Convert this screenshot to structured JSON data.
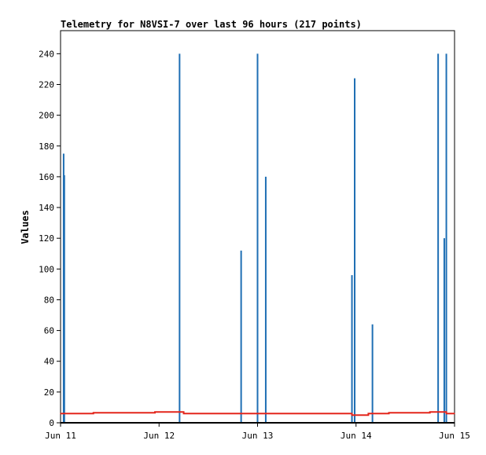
{
  "chart_data": {
    "type": "line",
    "title": "Telemetry for N8VSI-7 over last 96 hours (217 points)",
    "xlabel": "",
    "ylabel": "Values",
    "xlim": [
      "2021-06-11T00:00",
      "2021-06-15T00:00"
    ],
    "ylim": [
      0,
      255
    ],
    "grid": false,
    "x_ticks": [
      {
        "label": "Jun 11",
        "t": "2021-06-11T00:00"
      },
      {
        "label": "Jun 12",
        "t": "2021-06-12T00:00"
      },
      {
        "label": "Jun 13",
        "t": "2021-06-13T00:00"
      },
      {
        "label": "Jun 14",
        "t": "2021-06-14T00:00"
      },
      {
        "label": "Jun 15",
        "t": "2021-06-15T00:00"
      }
    ],
    "y_ticks": [
      0,
      20,
      40,
      60,
      80,
      100,
      120,
      140,
      160,
      180,
      200,
      220,
      240
    ],
    "series": [
      {
        "color": "#1f6fb4",
        "style": "spikes",
        "points": [
          {
            "t": "2021-06-11T00:45",
            "y": 175
          },
          {
            "t": "2021-06-11T00:55",
            "y": 161
          },
          {
            "t": "2021-06-12T05:00",
            "y": 240
          },
          {
            "t": "2021-06-12T20:00",
            "y": 112
          },
          {
            "t": "2021-06-13T00:00",
            "y": 240
          },
          {
            "t": "2021-06-13T02:00",
            "y": 160
          },
          {
            "t": "2021-06-13T23:00",
            "y": 96
          },
          {
            "t": "2021-06-13T23:40",
            "y": 224
          },
          {
            "t": "2021-06-14T04:00",
            "y": 64
          },
          {
            "t": "2021-06-14T20:00",
            "y": 240
          },
          {
            "t": "2021-06-14T21:30",
            "y": 120
          },
          {
            "t": "2021-06-14T22:00",
            "y": 240
          }
        ]
      },
      {
        "color": "#e3261c",
        "style": "step",
        "points": [
          {
            "t": "2021-06-11T00:00",
            "y": 6
          },
          {
            "t": "2021-06-11T08:00",
            "y": 6.5
          },
          {
            "t": "2021-06-11T23:00",
            "y": 7
          },
          {
            "t": "2021-06-12T06:00",
            "y": 6
          },
          {
            "t": "2021-06-13T23:00",
            "y": 5
          },
          {
            "t": "2021-06-14T03:00",
            "y": 6
          },
          {
            "t": "2021-06-14T08:00",
            "y": 6.5
          },
          {
            "t": "2021-06-14T18:00",
            "y": 7
          },
          {
            "t": "2021-06-14T22:00",
            "y": 6
          },
          {
            "t": "2021-06-14T23:59",
            "y": 6
          }
        ]
      }
    ]
  }
}
